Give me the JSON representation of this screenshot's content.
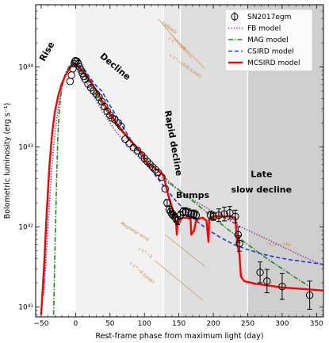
{
  "chart_data": {
    "type": "line",
    "xlabel": "Rest-frame phase from maximum light (day)",
    "ylabel": "Bolometric luminosity (erg s⁻¹)",
    "xlim": [
      -58,
      360
    ],
    "ylim": [
      7.5e+40,
      6e+44
    ],
    "yscale": "log",
    "x_ticks": [
      -50,
      0,
      50,
      100,
      150,
      200,
      250,
      300,
      350
    ],
    "y_ticks": [
      {
        "value": 1e+41,
        "label": "10⁴¹"
      },
      {
        "value": 1e+42,
        "label": "10⁴²"
      },
      {
        "value": 1e+43,
        "label": "10⁴³"
      },
      {
        "value": 1e+44,
        "label": "10⁴⁴"
      }
    ],
    "grid": false,
    "legend_position": "top-right",
    "regions": [
      {
        "x0": 0,
        "x1": 128,
        "fill": "#f2f2f2"
      },
      {
        "x0": 128,
        "x1": 152,
        "fill": "#e8e8e8"
      },
      {
        "x0": 152,
        "x1": 250,
        "fill": "#dedede"
      },
      {
        "x0": 250,
        "x1": 360,
        "fill": "#cfcfcf"
      }
    ],
    "phase_labels": [
      {
        "text": "Rise",
        "x": -38,
        "y": 1.5e+44,
        "rotate": -60
      },
      {
        "text": "Decline",
        "x": 55,
        "y": 9.5e+43,
        "rotate": 40
      },
      {
        "text": "Rapid decline",
        "x": 138,
        "y": 1.1e+43,
        "rotate": 80
      },
      {
        "text": "Bumps",
        "x": 170,
        "y": 2.3e+42,
        "rotate": 0
      },
      {
        "text": "Late",
        "x": 270,
        "y": 4.2e+42,
        "rotate": 0
      },
      {
        "text": "slow decline",
        "x": 270,
        "y": 2.7e+42,
        "rotate": 0
      }
    ],
    "annotations": [
      {
        "text": "Fallback",
        "x": 135,
        "y": 3e+44,
        "rotate": 35
      },
      {
        "text": "∝ t^−5/3",
        "x": 146,
        "y": 1.9e+44,
        "rotate": 35
      },
      {
        "text": "∝ t^−10/9 (Leak)",
        "x": 158,
        "y": 1e+44,
        "rotate": 35
      },
      {
        "text": "Magnetar wind",
        "x": 85,
        "y": 8.5e+41,
        "rotate": 32
      },
      {
        "text": "∝ t^−2",
        "x": 100,
        "y": 4.6e+41,
        "rotate": 32
      },
      {
        "text": "∝ t^−4 (Leak)",
        "x": 95,
        "y": 2.6e+41,
        "rotate": 40
      },
      {
        "text": "⁵⁶Co → ⁵⁶Fe",
        "x": 295,
        "y": 5.8e+41,
        "rotate": 0
      }
    ],
    "series": [
      {
        "name": "SN2017egm",
        "style": "markers",
        "color": "#000000",
        "x": [
          -8,
          -6,
          -4,
          -2,
          -1,
          0,
          2,
          4,
          6,
          8,
          10,
          12,
          14,
          18,
          22,
          26,
          30,
          34,
          38,
          42,
          46,
          50,
          53,
          57,
          62,
          66,
          72,
          78,
          84,
          90,
          96,
          100,
          104,
          108,
          112,
          116,
          120,
          125,
          130,
          133,
          136,
          138,
          140,
          142,
          145,
          148,
          152,
          156,
          160,
          164,
          168,
          172,
          175,
          196,
          200,
          208,
          216,
          224,
          232,
          236,
          238,
          268,
          278,
          300,
          340
        ],
        "y": [
          6.6e+43,
          7.9e+43,
          9.5e+43,
          1.1e+44,
          1.17e+44,
          1.2e+44,
          1.18e+44,
          1.1e+44,
          1e+44,
          9.1e+43,
          8.3e+43,
          7.6e+43,
          7e+43,
          6.1e+43,
          5.5e+43,
          5e+43,
          4.6e+43,
          4.2e+43,
          3.7e+43,
          3.2e+43,
          2.8e+43,
          2.5e+43,
          2.3e+43,
          2.2e+43,
          2e+43,
          1.8e+43,
          1.25e+43,
          1.1e+43,
          9.8e+42,
          9e+42,
          7.9e+42,
          7.2e+42,
          6.6e+42,
          6.1e+42,
          5.6e+42,
          5.2e+42,
          4.8e+42,
          4.2e+42,
          3e+42,
          2e+42,
          1.65e+42,
          1.55e+42,
          1.45e+42,
          1.4e+42,
          1.3e+42,
          1.2e+42,
          1.4e+42,
          1.55e+42,
          1.55e+42,
          1.5e+42,
          1.45e+42,
          1.45e+42,
          1.4e+42,
          1.4e+42,
          1.35e+42,
          1.4e+42,
          1.45e+42,
          1.5e+42,
          1.35e+42,
          8e+41,
          6.2e+41,
          2.7e+41,
          2.1e+41,
          1.8e+41,
          1.4e+41
        ],
        "err_frac": [
          0.06,
          0.06,
          0.06,
          0.06,
          0.06,
          0.06,
          0.06,
          0.06,
          0.06,
          0.06,
          0.06,
          0.06,
          0.06,
          0.06,
          0.06,
          0.06,
          0.06,
          0.06,
          0.06,
          0.06,
          0.06,
          0.06,
          0.06,
          0.06,
          0.06,
          0.06,
          0.06,
          0.06,
          0.06,
          0.06,
          0.06,
          0.06,
          0.06,
          0.06,
          0.06,
          0.06,
          0.06,
          0.06,
          0.08,
          0.1,
          0.1,
          0.1,
          0.1,
          0.1,
          0.12,
          0.12,
          0.12,
          0.12,
          0.12,
          0.12,
          0.12,
          0.12,
          0.12,
          0.12,
          0.12,
          0.2,
          0.22,
          0.2,
          0.2,
          0.25,
          0.25,
          0.35,
          0.4,
          0.45,
          0.5
        ]
      },
      {
        "name": "FB model",
        "style": "dotted",
        "color": "#8b1a8b",
        "x": [
          -46,
          -40,
          -35,
          -30,
          -25,
          -20,
          -15,
          -10,
          -5,
          -2,
          0,
          5,
          10,
          20,
          30,
          40,
          50,
          60,
          70,
          80,
          90,
          100,
          110,
          120,
          130,
          140,
          150,
          160,
          180,
          200,
          220,
          240,
          260,
          280,
          300,
          320,
          340,
          360
        ],
        "y": [
          1.5e+41,
          1e+42,
          5e+42,
          1.5e+43,
          3.2e+43,
          5.5e+43,
          7.8e+43,
          9.8e+43,
          1.08e+44,
          1.1e+44,
          1.1e+44,
          9.6e+43,
          8e+43,
          5.5e+43,
          3.8e+43,
          2.7e+43,
          2e+43,
          1.5e+43,
          1.2e+43,
          9.5e+42,
          7.7e+42,
          6.3e+42,
          5.2e+42,
          4.4e+42,
          3.8e+42,
          3.3e+42,
          2.9e+42,
          2.5e+42,
          1.95e+42,
          1.55e+42,
          1.25e+42,
          1e+42,
          8.3e+41,
          6.9e+41,
          5.7e+41,
          4.7e+41,
          3.9e+41,
          3.3e+41
        ]
      },
      {
        "name": "MAG model",
        "style": "dashdot",
        "color": "#1a8c1a",
        "x": [
          -32,
          -30,
          -28,
          -26,
          -24,
          -22,
          -20,
          -17,
          -14,
          -10,
          -6,
          -3,
          0,
          5,
          10,
          20,
          30,
          40,
          50,
          60,
          70,
          80,
          90,
          100,
          110,
          120,
          130,
          140,
          150,
          160,
          180,
          200,
          220,
          240,
          260,
          280,
          300,
          320,
          340
        ],
        "y": [
          8e+40,
          5e+41,
          3e+42,
          1.2e+43,
          2.6e+43,
          4e+43,
          5.5e+43,
          7.2e+43,
          8.6e+43,
          1e+44,
          1.08e+44,
          1.1e+44,
          1.1e+44,
          1e+44,
          8.6e+43,
          6.3e+43,
          4.5e+43,
          3.3e+43,
          2.45e+43,
          1.85e+43,
          1.45e+43,
          1.15e+43,
          9.2e+42,
          7.4e+42,
          6e+42,
          5e+42,
          4.1e+42,
          3.4e+42,
          2.9e+42,
          2.5e+42,
          1.8e+42,
          1.3e+42,
          9.5e+41,
          7e+41,
          5.2e+41,
          3.9e+41,
          3e+41,
          2.3e+41,
          1.8e+41
        ]
      },
      {
        "name": "CSIRD model",
        "style": "dashed",
        "color": "#1f3bd6",
        "x": [
          -50,
          -46,
          -42,
          -38,
          -34,
          -30,
          -25,
          -20,
          -15,
          -10,
          -5,
          0,
          5,
          10,
          15,
          20,
          30,
          35,
          38,
          45,
          55,
          65,
          75,
          85,
          95,
          105,
          115,
          125,
          135,
          145,
          155,
          170,
          190,
          210,
          230,
          250,
          270,
          290,
          310,
          330,
          350,
          360
        ],
        "y": [
          8e+40,
          2e+41,
          1.2e+42,
          5e+42,
          1.4e+43,
          2.8e+43,
          4.6e+43,
          6.3e+43,
          7.8e+43,
          9.2e+43,
          1.03e+44,
          1.08e+44,
          1.05e+44,
          9.8e+43,
          8.8e+43,
          7.5e+43,
          5.8e+43,
          5.3e+43,
          5e+43,
          3.9e+43,
          2.8e+43,
          2e+43,
          1.45e+43,
          1.05e+43,
          7.8e+42,
          5.9e+42,
          4.5e+42,
          3.5e+42,
          2.75e+42,
          2.15e+42,
          1.75e+42,
          1.3e+42,
          9.5e+41,
          7.4e+41,
          6e+41,
          5.2e+41,
          4.6e+41,
          4.2e+41,
          3.9e+41,
          3.7e+41,
          3.5e+41,
          3.4e+41
        ]
      },
      {
        "name": "MCSIRD model",
        "style": "solid",
        "color": "#ff0000",
        "x": [
          -50,
          -46,
          -42,
          -38,
          -34,
          -30,
          -25,
          -20,
          -15,
          -10,
          -6,
          -3,
          -1,
          0,
          2,
          5,
          10,
          20,
          30,
          40,
          50,
          60,
          70,
          80,
          90,
          95,
          98,
          100,
          104,
          110,
          118,
          125,
          128,
          130,
          134,
          138,
          142,
          146,
          147,
          148,
          151,
          155,
          162,
          167,
          168,
          172,
          175,
          180,
          185,
          190,
          193,
          194,
          196,
          200,
          208,
          215,
          222,
          228,
          232,
          233,
          235,
          238,
          240,
          245,
          260,
          280,
          300,
          320,
          340,
          360
        ],
        "y": [
          8e+40,
          3e+41,
          1.5e+42,
          6e+42,
          1.5e+43,
          2.8e+43,
          4.5e+43,
          6.2e+43,
          7.8e+43,
          9.2e+43,
          1.03e+44,
          1.08e+44,
          1.1e+44,
          1.1e+44,
          1.06e+44,
          9.9e+43,
          8.9e+43,
          7e+43,
          5.1e+43,
          3.6e+43,
          2.6e+43,
          1.95e+43,
          1.5e+43,
          1.2e+43,
          9.6e+42,
          8.6e+42,
          8e+42,
          6.8e+42,
          6.3e+42,
          5.8e+42,
          5.2e+42,
          4.7e+42,
          4.3e+42,
          3.6e+42,
          2.6e+42,
          2e+42,
          1.55e+42,
          1.1e+42,
          8e+41,
          1.1e+42,
          1.25e+42,
          1.3e+42,
          1.3e+42,
          1.25e+42,
          8e+41,
          9e+41,
          1.2e+42,
          1.28e+42,
          1.3e+42,
          1.2e+42,
          6.5e+41,
          1.2e+42,
          1.3e+42,
          1.35e+42,
          1.35e+42,
          1.35e+42,
          1.35e+42,
          1.33e+42,
          1.3e+42,
          1e+42,
          6e+41,
          4.5e+41,
          2.4e+41,
          2.1e+41,
          1.95e+41,
          1.85e+41,
          1.75e+41,
          1.7e+41,
          1.65e+41,
          1.6e+41
        ]
      }
    ]
  }
}
